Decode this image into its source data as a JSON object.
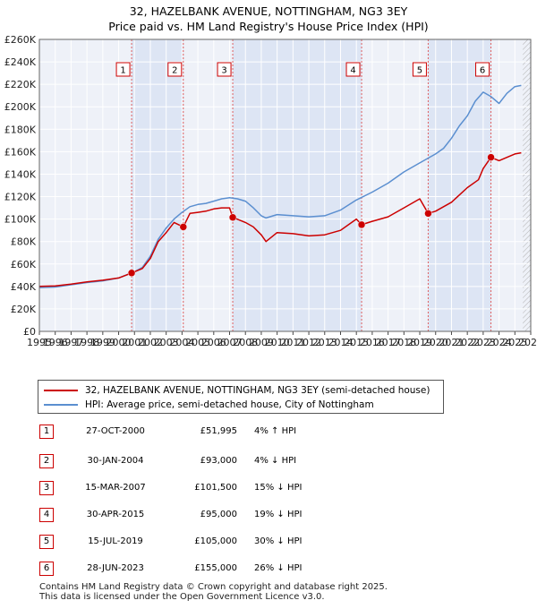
{
  "title_line1": "32, HAZELBANK AVENUE, NOTTINGHAM, NG3 3EY",
  "title_line2": "Price paid vs. HM Land Registry's House Price Index (HPI)",
  "chart_data": {
    "type": "line",
    "title": "32, HAZELBANK AVENUE, NOTTINGHAM, NG3 3EY — Price paid vs. HM Land Registry's House Price Index (HPI)",
    "xlabel": "",
    "ylabel": "",
    "xlim": [
      1995,
      2026
    ],
    "ylim": [
      0,
      260000
    ],
    "x_ticks": [
      "1995",
      "1996",
      "1997",
      "1998",
      "1999",
      "2000",
      "2001",
      "2002",
      "2003",
      "2004",
      "2005",
      "2006",
      "2007",
      "2008",
      "2009",
      "2010",
      "2011",
      "2012",
      "2013",
      "2014",
      "2015",
      "2016",
      "2017",
      "2018",
      "2019",
      "2020",
      "2021",
      "2022",
      "2023",
      "2024",
      "2025",
      "2026"
    ],
    "y_ticks": [
      "£0",
      "£20K",
      "£40K",
      "£60K",
      "£80K",
      "£100K",
      "£120K",
      "£140K",
      "£160K",
      "£180K",
      "£200K",
      "£220K",
      "£240K",
      "£260K"
    ],
    "grid": true,
    "series": [
      {
        "name": "32, HAZELBANK AVENUE, NOTTINGHAM, NG3 3EY (semi-detached house)",
        "color": "#cc0000",
        "x": [
          1995,
          1996,
          1997,
          1998,
          1999,
          2000,
          2000.82,
          2001.5,
          2002,
          2002.5,
          2003,
          2003.5,
          2004.08,
          2004.5,
          2005,
          2005.5,
          2006,
          2006.5,
          2007.0,
          2007.2,
          2008,
          2008.5,
          2009,
          2009.3,
          2010,
          2011,
          2012,
          2013,
          2014,
          2015,
          2015.33,
          2016,
          2017,
          2018,
          2019,
          2019.53,
          2020,
          2021,
          2022,
          2022.7,
          2023.0,
          2023.49,
          2024,
          2024.5,
          2025,
          2025.4
        ],
        "values": [
          40000,
          40500,
          42000,
          44000,
          45500,
          47500,
          51995,
          56000,
          65000,
          80000,
          88000,
          97000,
          93000,
          105000,
          106000,
          107000,
          109000,
          110000,
          110000,
          101500,
          97000,
          93000,
          86000,
          80000,
          88000,
          87000,
          85000,
          86000,
          90000,
          100000,
          95000,
          98000,
          102000,
          110000,
          118000,
          105000,
          107000,
          115000,
          128000,
          135000,
          145000,
          155000,
          152000,
          155000,
          158000,
          159000
        ]
      },
      {
        "name": "HPI: Average price, semi-detached house, City of Nottingham",
        "color": "#5b8fd0",
        "x": [
          1995,
          1996,
          1997,
          1998,
          1999,
          2000,
          2001,
          2001.5,
          2002,
          2002.5,
          2003,
          2003.5,
          2004,
          2004.5,
          2005,
          2005.5,
          2006,
          2006.5,
          2007,
          2007.5,
          2008,
          2008.5,
          2009,
          2009.3,
          2010,
          2011,
          2012,
          2013,
          2014,
          2015,
          2016,
          2017,
          2018,
          2019,
          2020,
          2020.5,
          2021,
          2021.5,
          2022,
          2022.5,
          2023,
          2023.5,
          2024,
          2024.5,
          2025,
          2025.4
        ],
        "values": [
          39000,
          39500,
          41500,
          43500,
          45000,
          47500,
          53000,
          57000,
          67000,
          82000,
          92000,
          100000,
          106000,
          111000,
          113000,
          114000,
          116000,
          118000,
          119000,
          118000,
          116000,
          110000,
          103000,
          101000,
          104000,
          103000,
          102000,
          103000,
          108000,
          117000,
          124000,
          132000,
          142000,
          150000,
          158000,
          163000,
          172000,
          183000,
          192000,
          205000,
          213000,
          209000,
          203000,
          212000,
          218000,
          219000
        ]
      }
    ],
    "sales": [
      {
        "num": "1",
        "date": "27-OCT-2000",
        "price": "£51,995",
        "hpi": "4% ↑ HPI",
        "x": 2000.82,
        "value": 51995
      },
      {
        "num": "2",
        "date": "30-JAN-2004",
        "price": "£93,000",
        "hpi": "4% ↓ HPI",
        "x": 2004.08,
        "value": 93000
      },
      {
        "num": "3",
        "date": "15-MAR-2007",
        "price": "£101,500",
        "hpi": "15% ↓ HPI",
        "x": 2007.2,
        "value": 101500
      },
      {
        "num": "4",
        "date": "30-APR-2015",
        "price": "£95,000",
        "hpi": "19% ↓ HPI",
        "x": 2015.33,
        "value": 95000
      },
      {
        "num": "5",
        "date": "15-JUL-2019",
        "price": "£105,000",
        "hpi": "30% ↓ HPI",
        "x": 2019.53,
        "value": 105000
      },
      {
        "num": "6",
        "date": "28-JUN-2023",
        "price": "£155,000",
        "hpi": "26% ↓ HPI",
        "x": 2023.49,
        "value": 155000
      }
    ],
    "forecast_start": 2025.5
  },
  "legend": {
    "series1_label": "32, HAZELBANK AVENUE, NOTTINGHAM, NG3 3EY (semi-detached house)",
    "series2_label": "HPI: Average price, semi-detached house, City of Nottingham"
  },
  "footer": {
    "line1": "Contains HM Land Registry data © Crown copyright and database right 2025.",
    "line2": "This data is licensed under the Open Government Licence v3.0."
  }
}
